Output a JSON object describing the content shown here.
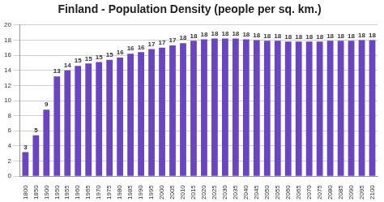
{
  "chart_data": {
    "type": "bar",
    "title": "Finland - Population Density (people per sq. km.)",
    "categories": [
      "1800",
      "1850",
      "1900",
      "1950",
      "1955",
      "1960",
      "1965",
      "1970",
      "1975",
      "1980",
      "1985",
      "1990",
      "1995",
      "2000",
      "2005",
      "2010",
      "2015",
      "2020",
      "2025",
      "2030",
      "2035",
      "2040",
      "2045",
      "2050",
      "2055",
      "2060",
      "2065",
      "2070",
      "2075",
      "2080",
      "2085",
      "2090",
      "2095",
      "2100"
    ],
    "values": [
      3.2,
      5.4,
      8.8,
      13.2,
      14.0,
      14.6,
      14.9,
      15.1,
      15.4,
      15.7,
      16.2,
      16.4,
      16.8,
      17.0,
      17.3,
      17.6,
      17.9,
      18.1,
      18.2,
      18.2,
      18.2,
      18.1,
      18.0,
      17.9,
      17.9,
      17.8,
      17.8,
      17.8,
      17.8,
      17.9,
      17.9,
      17.9,
      18.0,
      18.0
    ],
    "value_labels": [
      "3",
      "5",
      "9",
      "13",
      "14",
      "15",
      "15",
      "15",
      "15",
      "16",
      "16",
      "16",
      "17",
      "17",
      "17",
      "18",
      "18",
      "18",
      "18",
      "18",
      "18",
      "18",
      "18",
      "18",
      "18",
      "18",
      "18",
      "18",
      "18",
      "18",
      "18",
      "18",
      "18",
      "18"
    ],
    "data_labels": true,
    "color": "#6a45c2",
    "ylim": [
      0,
      20
    ],
    "yticks": [
      0,
      2,
      4,
      6,
      8,
      10,
      12,
      14,
      16,
      18,
      20
    ],
    "grid": true
  }
}
